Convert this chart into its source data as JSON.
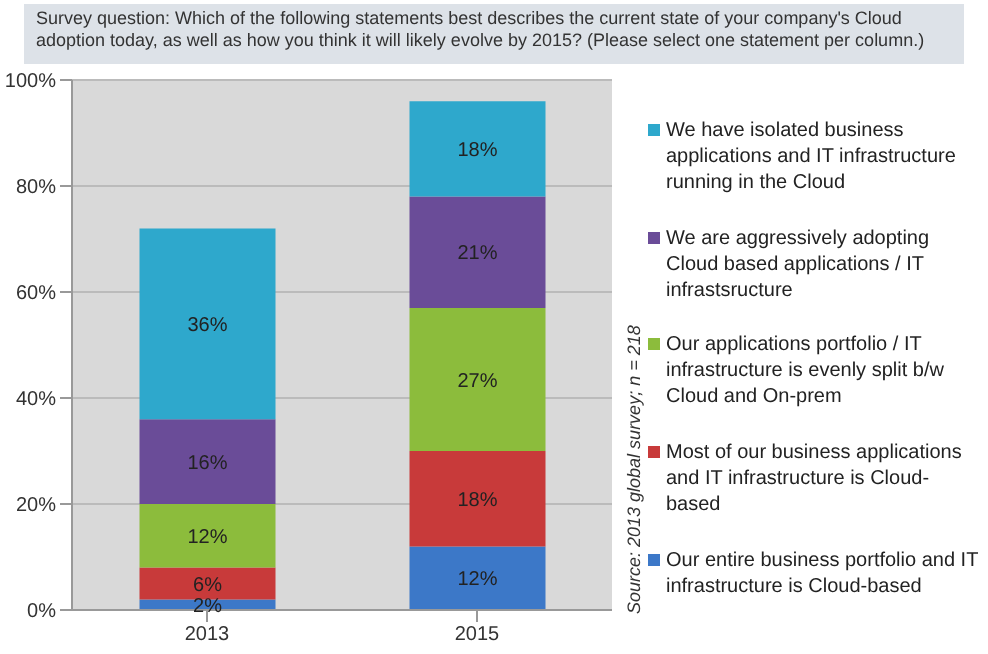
{
  "chart_data": {
    "type": "bar",
    "stacked": true,
    "title": "Survey question: Which of the following statements best describes the current state of your company's Cloud adoption today, as well as how you think it will likely evolve by 2015? (Please select one statement per column.)",
    "categories": [
      "2013",
      "2015"
    ],
    "series": [
      {
        "name": "Our entire business portfolio and IT infrastructure is Cloud-based",
        "color": "#3c78c8",
        "values": [
          2,
          12
        ],
        "value_labels": [
          "2%",
          "12%"
        ]
      },
      {
        "name": "Most of our business applications and IT infrastructure is Cloud-based",
        "color": "#c83a3a",
        "values": [
          6,
          18
        ],
        "value_labels": [
          "6%",
          "18%"
        ]
      },
      {
        "name": "Our applications portfolio / IT infrastructure is evenly split b/w Cloud and On-prem",
        "color": "#8cbc3c",
        "values": [
          12,
          27
        ],
        "value_labels": [
          "12%",
          "27%"
        ]
      },
      {
        "name": "We are aggressively adopting Cloud based applications / IT infrastsructure",
        "color": "#6a4c98",
        "values": [
          16,
          21
        ],
        "value_labels": [
          "16%",
          "21%"
        ]
      },
      {
        "name": "We have isolated business applications and IT infrastructure running in the Cloud",
        "color": "#2ea8cc",
        "values": [
          36,
          18
        ],
        "value_labels": [
          "36%",
          "18%"
        ]
      }
    ],
    "ylim": [
      0,
      100
    ],
    "yticks": [
      {
        "value": 0,
        "label": "0%"
      },
      {
        "value": 20,
        "label": "20%"
      },
      {
        "value": 40,
        "label": "40%"
      },
      {
        "value": 60,
        "label": "60%"
      },
      {
        "value": 80,
        "label": "80%"
      },
      {
        "value": 100,
        "label": "100%"
      }
    ],
    "grid": "y",
    "legend": "right",
    "annotations": [
      "Source: 2013 global survey; n = 218"
    ]
  }
}
